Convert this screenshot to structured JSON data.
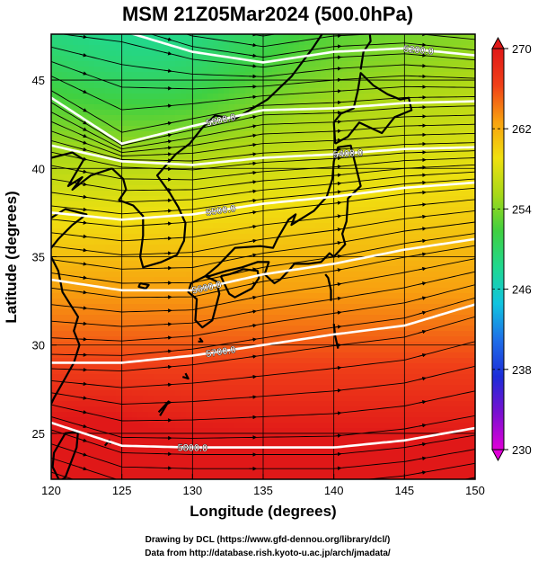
{
  "title": "MSM 21Z05Mar2024 (500.0hPa)",
  "credits": {
    "line1": "Drawing by DCL (https://www.gfd-dennou.org/library/dcl/)",
    "line2": "Data from http://database.rish.kyoto-u.ac.jp/arch/jmadata/"
  },
  "chart_data": {
    "type": "heatmap",
    "title": "MSM 21Z05Mar2024 (500.0hPa)",
    "xlabel": "Longitude (degrees)",
    "ylabel": "Latitude  (degrees)",
    "xlim": [
      120,
      150
    ],
    "ylim": [
      22.4,
      47.6
    ],
    "xticks": [
      "120",
      "125",
      "130",
      "135",
      "140",
      "145",
      "150"
    ],
    "yticks": [
      "25",
      "30",
      "35",
      "40",
      "45"
    ],
    "grid": true,
    "colorbar": {
      "min": 230,
      "max": 270,
      "ticks": [
        "230",
        "238",
        "246",
        "254",
        "262",
        "270"
      ],
      "stops": [
        "#e000d8",
        "#7a10d0",
        "#1c2cd8",
        "#1e6ee8",
        "#10c4e0",
        "#20d890",
        "#40d040",
        "#a8d818",
        "#f0e010",
        "#f8a010",
        "#f04018",
        "#e01818"
      ]
    },
    "overlay": "streamlines (wind), white contours (geopotential height), black coastlines",
    "contours": [
      {
        "label": "5200.0",
        "lat_at_lon": [
          [
            120,
            48.1
          ],
          [
            125,
            47.8
          ],
          [
            130,
            46.6
          ],
          [
            135,
            46.0
          ],
          [
            140,
            46.6
          ],
          [
            145,
            46.8
          ],
          [
            150,
            46.4
          ]
        ]
      },
      {
        "label": "5300.0",
        "lat_at_lon": [
          [
            120,
            44.0
          ],
          [
            125,
            41.4
          ],
          [
            130,
            42.4
          ],
          [
            135,
            43.3
          ],
          [
            140,
            43.4
          ],
          [
            145,
            43.7
          ],
          [
            150,
            43.8
          ]
        ]
      },
      {
        "label": "5400.0",
        "lat_at_lon": [
          [
            120,
            41.3
          ],
          [
            125,
            40.4
          ],
          [
            130,
            40.2
          ],
          [
            135,
            40.6
          ],
          [
            140,
            40.8
          ],
          [
            145,
            41.1
          ],
          [
            150,
            41.2
          ]
        ]
      },
      {
        "label": "5500.0",
        "lat_at_lon": [
          [
            120,
            37.5
          ],
          [
            125,
            37.1
          ],
          [
            130,
            37.4
          ],
          [
            135,
            38.0
          ],
          [
            140,
            38.4
          ],
          [
            145,
            38.9
          ],
          [
            150,
            39.2
          ]
        ]
      },
      {
        "label": "5600.0",
        "lat_at_lon": [
          [
            120,
            33.7
          ],
          [
            125,
            33.1
          ],
          [
            130,
            33.1
          ],
          [
            135,
            34.0
          ],
          [
            140,
            34.6
          ],
          [
            145,
            35.4
          ],
          [
            150,
            36.0
          ]
        ]
      },
      {
        "label": "5700.0",
        "lat_at_lon": [
          [
            120,
            29.0
          ],
          [
            125,
            29.0
          ],
          [
            130,
            29.4
          ],
          [
            135,
            30.0
          ],
          [
            140,
            30.6
          ],
          [
            145,
            31.1
          ],
          [
            150,
            32.3
          ]
        ]
      },
      {
        "label": "5800.0",
        "lat_at_lon": [
          [
            120,
            25.6
          ],
          [
            125,
            24.3
          ],
          [
            130,
            24.2
          ],
          [
            135,
            24.2
          ],
          [
            140,
            24.2
          ],
          [
            145,
            24.6
          ],
          [
            150,
            25.3
          ]
        ]
      }
    ]
  }
}
